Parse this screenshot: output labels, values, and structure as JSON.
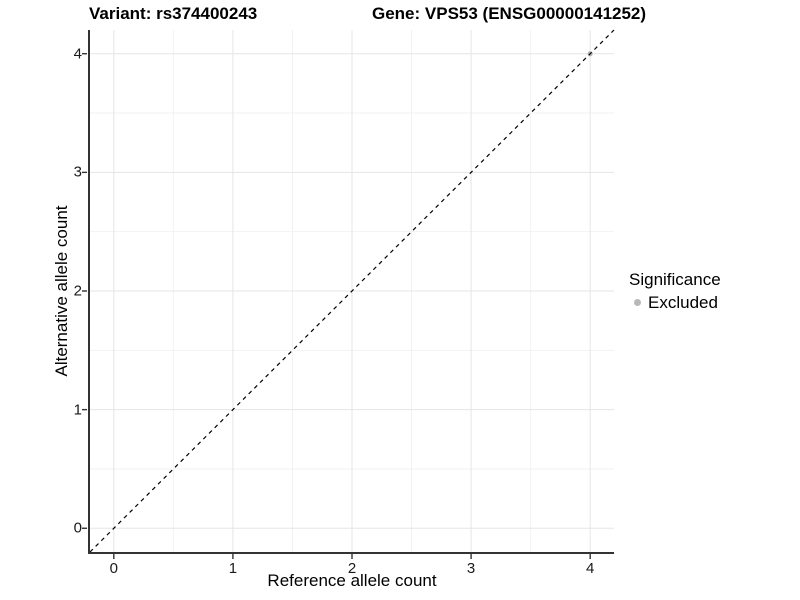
{
  "titles": {
    "variant": "Variant: rs374400243",
    "gene": "Gene: VPS53 (ENSG00000141252)"
  },
  "chart_data": {
    "type": "scatter",
    "title_left": "Variant: rs374400243",
    "title_right": "Gene: VPS53 (ENSG00000141252)",
    "xlabel": "Reference allele count",
    "ylabel": "Alternative allele count",
    "xlim": [
      -0.2,
      4.2
    ],
    "ylim": [
      -0.2,
      4.2
    ],
    "x_ticks": [
      0,
      1,
      2,
      3,
      4
    ],
    "y_ticks": [
      0,
      1,
      2,
      3,
      4
    ],
    "minor_ticks": [
      0.5,
      1.5,
      2.5,
      3.5
    ],
    "grid": true,
    "reference_line": {
      "type": "identity y=x",
      "style": "dashed",
      "color": "#000000"
    },
    "series": [
      {
        "name": "Excluded",
        "color": "#b8b8b8",
        "points": [
          {
            "x": 4,
            "y": 4
          }
        ]
      }
    ],
    "legend": {
      "position": "right",
      "title": "Significance",
      "items": [
        {
          "label": "Excluded",
          "color": "#b8b8b8"
        }
      ]
    },
    "colors": {
      "background": "#ffffff",
      "grid_major": "#e5e5e5",
      "grid_minor": "#f2f2f2",
      "axis_line": "#333333",
      "text": "#000000"
    }
  }
}
